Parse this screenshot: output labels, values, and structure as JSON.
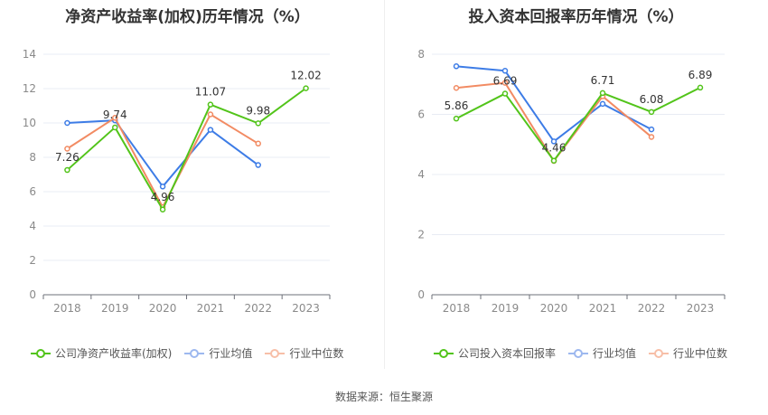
{
  "source_text": "数据来源：恒生聚源",
  "chart_data": [
    {
      "type": "line",
      "title": "净资产收益率(加权)历年情况（%）",
      "categories": [
        "2018",
        "2019",
        "2020",
        "2021",
        "2022",
        "2023"
      ],
      "ylim": [
        0,
        14
      ],
      "yticks": [
        0,
        2,
        4,
        6,
        8,
        10,
        12,
        14
      ],
      "grid": true,
      "legend_position": "bottom-left",
      "series": [
        {
          "name": "公司净资产收益率(加权)",
          "color": "#52c41a",
          "values": [
            7.26,
            9.74,
            4.96,
            11.07,
            9.98,
            12.02
          ],
          "labels": [
            "7.26",
            "9.74",
            "4.96",
            "11.07",
            "9.98",
            "12.02"
          ]
        },
        {
          "name": "行业均值",
          "color": "#3d7ce6",
          "values": [
            10.0,
            10.15,
            6.3,
            9.6,
            7.55,
            null
          ]
        },
        {
          "name": "行业中位数",
          "color": "#f28b63",
          "values": [
            8.5,
            10.3,
            5.1,
            10.5,
            8.8,
            null
          ]
        }
      ]
    },
    {
      "type": "line",
      "title": "投入资本回报率历年情况（%）",
      "categories": [
        "2018",
        "2019",
        "2020",
        "2021",
        "2022",
        "2023"
      ],
      "ylim": [
        0,
        8
      ],
      "yticks": [
        0,
        2,
        4,
        6,
        8
      ],
      "grid": true,
      "legend_position": "bottom-left",
      "series": [
        {
          "name": "公司投入资本回报率",
          "color": "#52c41a",
          "values": [
            5.86,
            6.69,
            4.46,
            6.71,
            6.08,
            6.89
          ],
          "labels": [
            "5.86",
            "6.69",
            "4.46",
            "6.71",
            "6.08",
            "6.89"
          ]
        },
        {
          "name": "行业均值",
          "color": "#3d7ce6",
          "values": [
            7.6,
            7.45,
            5.1,
            6.35,
            5.5,
            null
          ]
        },
        {
          "name": "行业中位数",
          "color": "#f28b63",
          "values": [
            6.88,
            7.05,
            4.45,
            6.6,
            5.25,
            null
          ]
        }
      ]
    }
  ]
}
